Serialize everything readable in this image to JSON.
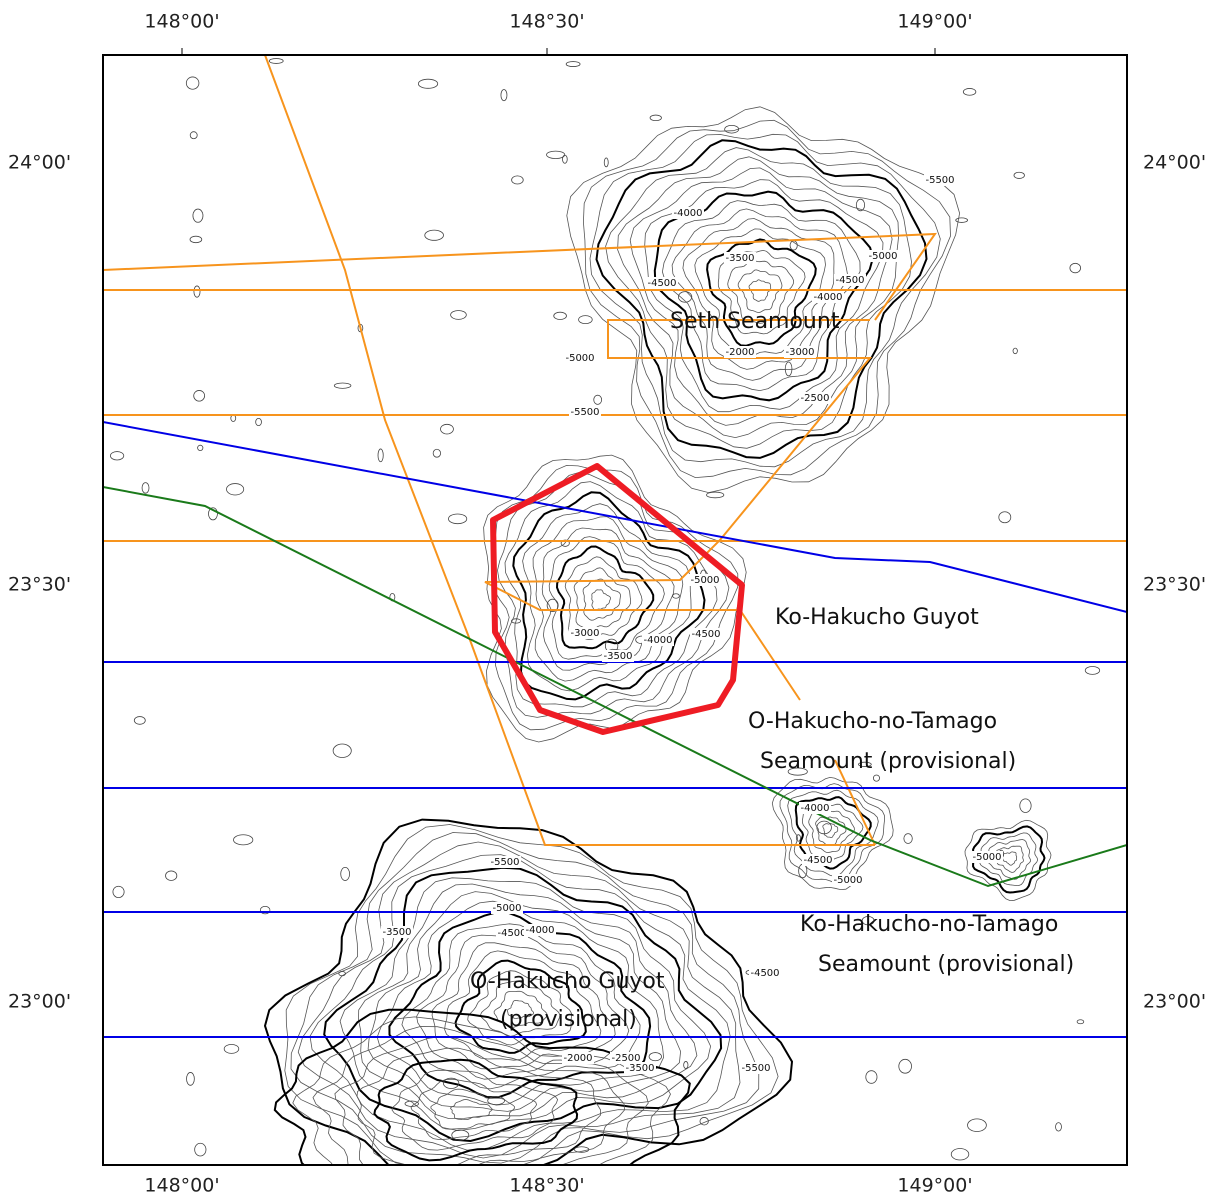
{
  "map": {
    "lon_ticks": [
      "148°00'",
      "148°30'",
      "149°00'"
    ],
    "lat_ticks": [
      "24°00'",
      "23°30'",
      "23°00'"
    ],
    "features": [
      {
        "lines": [
          "Seth Seamount"
        ]
      },
      {
        "lines": [
          "Ko-Hakucho Guyot"
        ]
      },
      {
        "lines": [
          "O-Hakucho-no-Tamago",
          "Seamount (provisional)"
        ]
      },
      {
        "lines": [
          "Ko-Hakucho-no-Tamago",
          "Seamount (provisional)"
        ]
      },
      {
        "lines": [
          "O-Hakucho Guyot",
          "(provisional)"
        ]
      }
    ],
    "contour_labels": [
      "-5500",
      "-4000",
      "-3500",
      "-5000",
      "-4500",
      "-4500",
      "-4000",
      "-2000",
      "-3000",
      "-5000",
      "-2500",
      "-5500",
      "-5000",
      "-3000",
      "-4000",
      "-4500",
      "-3500",
      "-4000",
      "-4500",
      "-5000",
      "-5000",
      "-5500",
      "-5000",
      "-4500",
      "-4000",
      "-3500",
      "-4500",
      "-2000",
      "-2500",
      "-3500",
      "-5500"
    ]
  }
}
